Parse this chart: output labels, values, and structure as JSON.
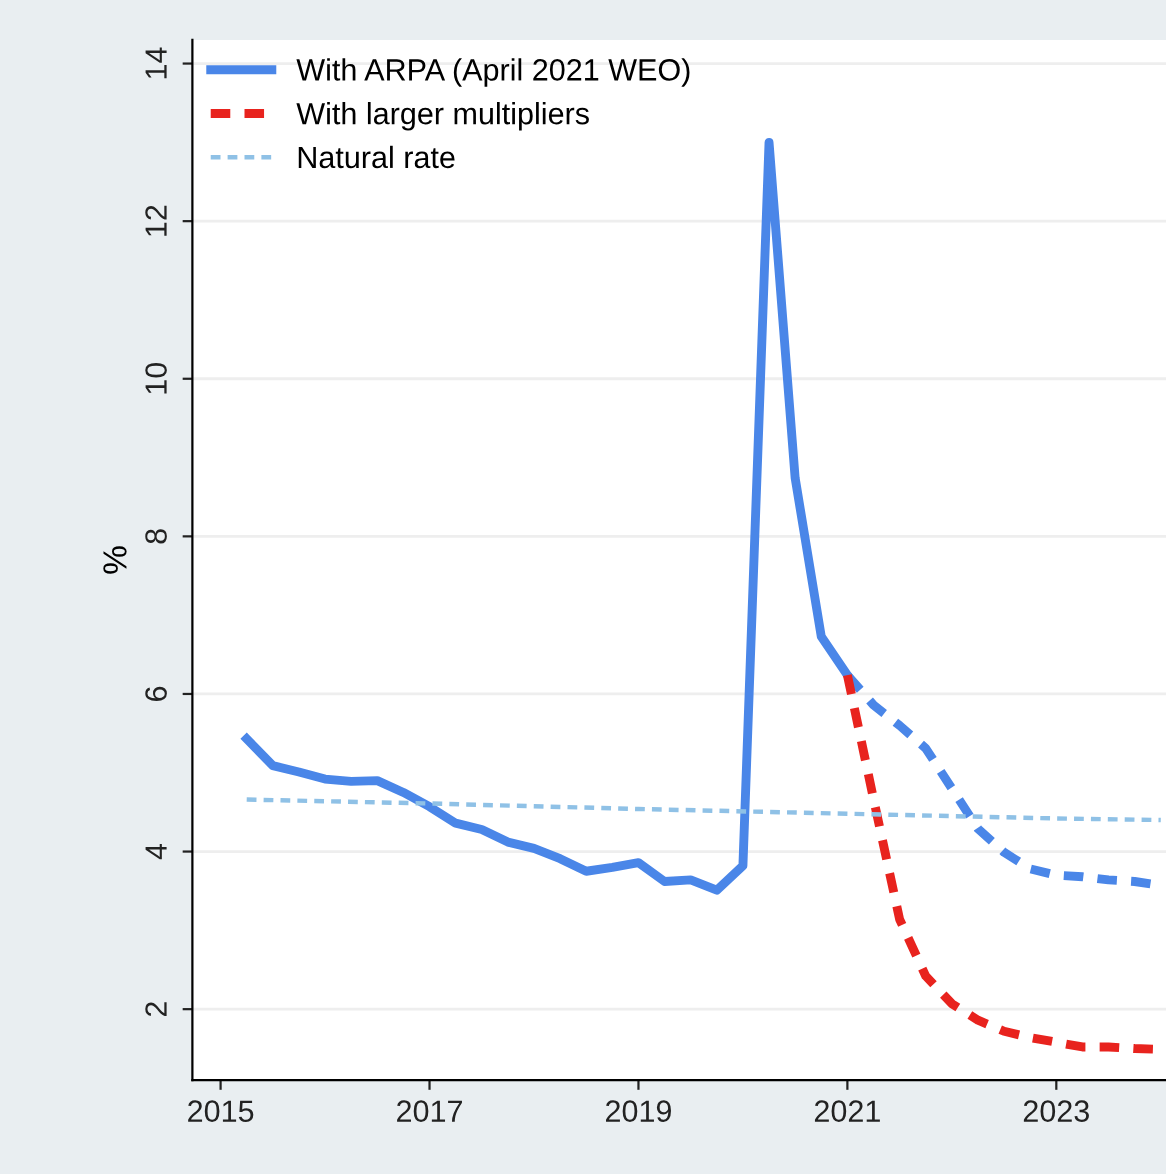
{
  "chart_data": {
    "type": "line",
    "ylabel": "%",
    "xlim": [
      2014.73,
      2024.05
    ],
    "ylim": [
      1.1,
      14.3
    ],
    "xticks": [
      2015,
      2017,
      2019,
      2021,
      2023
    ],
    "yticks": [
      2,
      4,
      6,
      8,
      10,
      12,
      14
    ],
    "grid": "y",
    "legend": "top left",
    "marker": "none",
    "series": [
      {
        "name": "With ARPA (April 2021 WEO)",
        "color": "#4a86e8",
        "line_style": "solid",
        "x": [
          2015.25,
          2015.5,
          2015.75,
          2016,
          2016.25,
          2016.5,
          2016.75,
          2017,
          2017.25,
          2017.5,
          2017.75,
          2018,
          2018.25,
          2018.5,
          2018.75,
          2019,
          2019.25,
          2019.5,
          2019.75,
          2020,
          2020.25,
          2020.5,
          2020.75,
          2021
        ],
        "values": [
          5.43,
          5.09,
          5.01,
          4.92,
          4.89,
          4.9,
          4.75,
          4.57,
          4.36,
          4.28,
          4.12,
          4.04,
          3.91,
          3.75,
          3.8,
          3.86,
          3.62,
          3.64,
          3.51,
          3.82,
          13.0,
          8.74,
          6.73,
          6.24
        ]
      },
      {
        "color": "#4a86e8",
        "line_style": "dashed",
        "x": [
          2021,
          2021.25,
          2021.5,
          2021.75,
          2022,
          2022.25,
          2022.5,
          2022.75,
          2023,
          2023.25,
          2023.5,
          2023.75,
          2024
        ],
        "values": [
          6.24,
          5.86,
          5.6,
          5.31,
          4.8,
          4.29,
          3.99,
          3.78,
          3.7,
          3.68,
          3.64,
          3.62,
          3.57
        ]
      },
      {
        "name": "With larger multipliers",
        "color": "#e8231e",
        "line_style": "dashed",
        "x": [
          2021,
          2021.25,
          2021.5,
          2021.75,
          2022,
          2022.25,
          2022.5,
          2022.75,
          2023,
          2023.25,
          2023.5,
          2023.75,
          2024
        ],
        "values": [
          6.24,
          4.67,
          3.14,
          2.42,
          2.07,
          1.86,
          1.72,
          1.64,
          1.58,
          1.52,
          1.52,
          1.5,
          1.49
        ]
      },
      {
        "name": "Natural rate",
        "color": "#8fc1e6",
        "line_style": "dashed",
        "x": [
          2015.25,
          2017,
          2019,
          2021,
          2023,
          2024
        ],
        "values": [
          4.66,
          4.61,
          4.54,
          4.48,
          4.42,
          4.4
        ]
      }
    ]
  }
}
